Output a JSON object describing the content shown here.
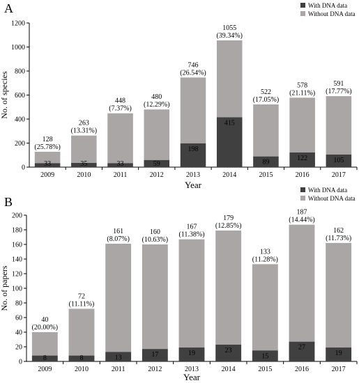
{
  "colors": {
    "with_dna": "#404040",
    "without_dna": "#aaa6a6",
    "axis": "#000000"
  },
  "chart_data": [
    {
      "type": "bar",
      "stacked": true,
      "panel_label": "A",
      "xlabel": "Year",
      "ylabel": "No. of species",
      "ylim": [
        0,
        1200
      ],
      "yticks": [
        0,
        200,
        400,
        600,
        800,
        1000,
        1200
      ],
      "legend_position": "top-right",
      "categories": [
        "2009",
        "2010",
        "2011",
        "2012",
        "2013",
        "2014",
        "2015",
        "2016",
        "2017"
      ],
      "series": [
        {
          "name": "With DNA data",
          "values": [
            33,
            35,
            33,
            59,
            198,
            415,
            89,
            122,
            105
          ]
        },
        {
          "name": "Without DNA data",
          "values": [
            95,
            228,
            415,
            421,
            548,
            640,
            433,
            456,
            486
          ]
        }
      ],
      "totals": [
        128,
        263,
        448,
        480,
        746,
        1055,
        522,
        578,
        591
      ],
      "total_labels": [
        "128",
        "263",
        "448",
        "480",
        "746",
        "1055",
        "522",
        "578",
        "591"
      ],
      "percent_labels": [
        "(25.78%)",
        "(13.31%)",
        "(7.37%)",
        "(12.29%)",
        "(26.54%)",
        "(39.34%)",
        "(17.05%)",
        "(21.11%)",
        "(17.77%)"
      ],
      "with_labels": [
        "33",
        "35",
        "33",
        "59",
        "198",
        "415",
        "89",
        "122",
        "105"
      ]
    },
    {
      "type": "bar",
      "stacked": true,
      "panel_label": "B",
      "xlabel": "Year",
      "ylabel": "No. of papers",
      "ylim": [
        0,
        200
      ],
      "yticks": [
        0,
        20,
        40,
        60,
        80,
        100,
        120,
        140,
        160,
        180,
        200
      ],
      "legend_position": "top-right",
      "categories": [
        "2009",
        "2010",
        "2011",
        "2012",
        "2013",
        "2014",
        "2015",
        "2016",
        "2017"
      ],
      "series": [
        {
          "name": "With DNA data",
          "values": [
            8,
            8,
            13,
            17,
            19,
            23,
            15,
            27,
            19
          ]
        },
        {
          "name": "Without DNA data",
          "values": [
            32,
            64,
            148,
            143,
            148,
            156,
            118,
            160,
            143
          ]
        }
      ],
      "totals": [
        40,
        72,
        161,
        160,
        167,
        179,
        133,
        187,
        162
      ],
      "total_labels": [
        "40",
        "72",
        "161",
        "160",
        "167",
        "179",
        "133",
        "187",
        "162"
      ],
      "percent_labels": [
        "(20.00%)",
        "(11.11%)",
        "(8.07%)",
        "(10.63%)",
        "(11.38%)",
        "(12.85%)",
        "(11.28%)",
        "(14.44%)",
        "(11.73%)"
      ],
      "with_labels": [
        "8",
        "8",
        "13",
        "17",
        "19",
        "23",
        "15",
        "27",
        "19"
      ]
    }
  ]
}
